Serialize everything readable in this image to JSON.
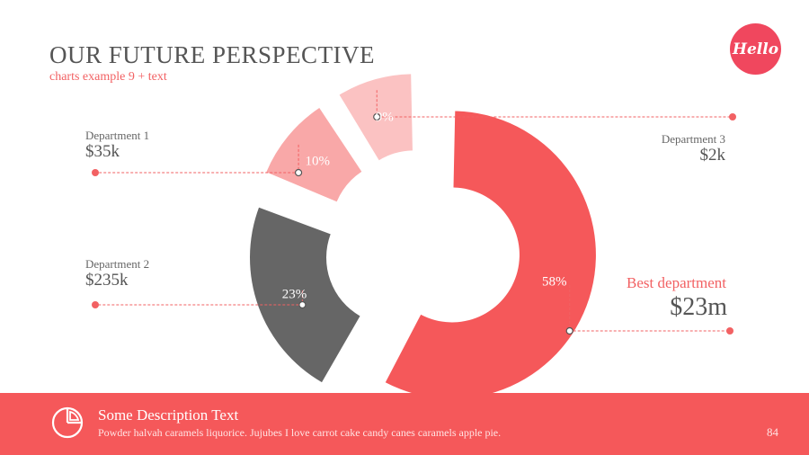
{
  "header": {
    "title": "OUR FUTURE PERSPECTIVE",
    "subtitle": "charts example 9 + text",
    "badge": "Hello"
  },
  "colors": {
    "accent": "#f5585a",
    "dark_segment": "#666666",
    "light_segment": "#f9a8a8",
    "lighter_segment": "#fbc2c2",
    "text": "#555555"
  },
  "departments": [
    {
      "name": "Department 1",
      "value": "$35k"
    },
    {
      "name": "Department 2",
      "value": "$235k"
    },
    {
      "name": "Department 3",
      "value": "$2k"
    }
  ],
  "best": {
    "label": "Best department",
    "value": "$23m"
  },
  "chart_data": {
    "type": "pie",
    "variant": "exploded-donut",
    "categories": [
      "Best department",
      "Department 2",
      "Department 1",
      "Department 3"
    ],
    "values": [
      58,
      23,
      10,
      9
    ],
    "labels": [
      "58%",
      "23%",
      "10%",
      "9%"
    ],
    "colors": [
      "#f5585a",
      "#666666",
      "#f9a8a8",
      "#fbc2c2"
    ]
  },
  "footer": {
    "icon": "pie-chart-icon",
    "title": "Some Description Text",
    "text": "Powder halvah caramels liquorice. Jujubes I love carrot cake candy canes caramels apple pie.",
    "page_number": "84"
  }
}
